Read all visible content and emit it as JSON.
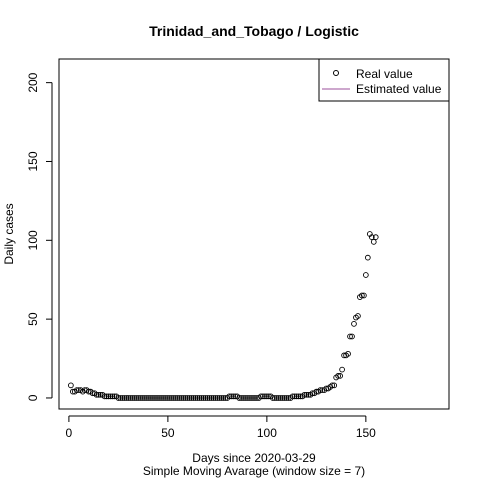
{
  "chart_data": {
    "type": "scatter",
    "title": "Trinidad_and_Tobago / Logistic",
    "xlabel": "Days since 2020-03-29",
    "subtitle": "Simple Moving Avarage (window size = 7)",
    "ylabel": "Daily cases",
    "xlim": [
      -5,
      192
    ],
    "ylim": [
      -7,
      215
    ],
    "x_ticks": [
      0,
      50,
      100,
      150
    ],
    "y_ticks": [
      0,
      50,
      100,
      150,
      200
    ],
    "legend": {
      "placement": "top-right",
      "entries": [
        {
          "label": "Real value",
          "symbol": "open-circle",
          "color": "#000000"
        },
        {
          "label": "Estimated value",
          "symbol": "line",
          "color": "#9b4f9b"
        }
      ]
    },
    "series": [
      {
        "name": "Real value",
        "color": "#000000",
        "points": [
          [
            1,
            8
          ],
          [
            2,
            4
          ],
          [
            3,
            4
          ],
          [
            4,
            5
          ],
          [
            5,
            5
          ],
          [
            6,
            5
          ],
          [
            7,
            4
          ],
          [
            8,
            5
          ],
          [
            9,
            5
          ],
          [
            10,
            4
          ],
          [
            11,
            4
          ],
          [
            12,
            3
          ],
          [
            13,
            3
          ],
          [
            14,
            2
          ],
          [
            15,
            2
          ],
          [
            16,
            2
          ],
          [
            17,
            2
          ],
          [
            18,
            1
          ],
          [
            19,
            1
          ],
          [
            20,
            1
          ],
          [
            21,
            1
          ],
          [
            22,
            1
          ],
          [
            23,
            1
          ],
          [
            24,
            1
          ],
          [
            25,
            0
          ],
          [
            26,
            0
          ],
          [
            27,
            0
          ],
          [
            28,
            0
          ],
          [
            29,
            0
          ],
          [
            30,
            0
          ],
          [
            31,
            0
          ],
          [
            32,
            0
          ],
          [
            33,
            0
          ],
          [
            34,
            0
          ],
          [
            35,
            0
          ],
          [
            36,
            0
          ],
          [
            37,
            0
          ],
          [
            38,
            0
          ],
          [
            39,
            0
          ],
          [
            40,
            0
          ],
          [
            41,
            0
          ],
          [
            42,
            0
          ],
          [
            43,
            0
          ],
          [
            44,
            0
          ],
          [
            45,
            0
          ],
          [
            46,
            0
          ],
          [
            47,
            0
          ],
          [
            48,
            0
          ],
          [
            49,
            0
          ],
          [
            50,
            0
          ],
          [
            51,
            0
          ],
          [
            52,
            0
          ],
          [
            53,
            0
          ],
          [
            54,
            0
          ],
          [
            55,
            0
          ],
          [
            56,
            0
          ],
          [
            57,
            0
          ],
          [
            58,
            0
          ],
          [
            59,
            0
          ],
          [
            60,
            0
          ],
          [
            61,
            0
          ],
          [
            62,
            0
          ],
          [
            63,
            0
          ],
          [
            64,
            0
          ],
          [
            65,
            0
          ],
          [
            66,
            0
          ],
          [
            67,
            0
          ],
          [
            68,
            0
          ],
          [
            69,
            0
          ],
          [
            70,
            0
          ],
          [
            71,
            0
          ],
          [
            72,
            0
          ],
          [
            73,
            0
          ],
          [
            74,
            0
          ],
          [
            75,
            0
          ],
          [
            76,
            0
          ],
          [
            77,
            0
          ],
          [
            78,
            0
          ],
          [
            79,
            0
          ],
          [
            80,
            0
          ],
          [
            81,
            1
          ],
          [
            82,
            1
          ],
          [
            83,
            1
          ],
          [
            84,
            1
          ],
          [
            85,
            1
          ],
          [
            86,
            0
          ],
          [
            87,
            0
          ],
          [
            88,
            0
          ],
          [
            89,
            0
          ],
          [
            90,
            0
          ],
          [
            91,
            0
          ],
          [
            92,
            0
          ],
          [
            93,
            0
          ],
          [
            94,
            0
          ],
          [
            95,
            0
          ],
          [
            96,
            0
          ],
          [
            97,
            1
          ],
          [
            98,
            1
          ],
          [
            99,
            1
          ],
          [
            100,
            1
          ],
          [
            101,
            1
          ],
          [
            102,
            1
          ],
          [
            103,
            0
          ],
          [
            104,
            0
          ],
          [
            105,
            0
          ],
          [
            106,
            0
          ],
          [
            107,
            0
          ],
          [
            108,
            0
          ],
          [
            109,
            0
          ],
          [
            110,
            0
          ],
          [
            111,
            0
          ],
          [
            112,
            0
          ],
          [
            113,
            1
          ],
          [
            114,
            1
          ],
          [
            115,
            1
          ],
          [
            116,
            1
          ],
          [
            117,
            1
          ],
          [
            118,
            1
          ],
          [
            119,
            2
          ],
          [
            120,
            2
          ],
          [
            121,
            2
          ],
          [
            122,
            2
          ],
          [
            123,
            3
          ],
          [
            124,
            3
          ],
          [
            125,
            4
          ],
          [
            126,
            4
          ],
          [
            127,
            5
          ],
          [
            128,
            5
          ],
          [
            129,
            5
          ],
          [
            130,
            6
          ],
          [
            131,
            6
          ],
          [
            132,
            7
          ],
          [
            133,
            8
          ],
          [
            134,
            8
          ],
          [
            135,
            13
          ],
          [
            136,
            14
          ],
          [
            137,
            14
          ],
          [
            138,
            18
          ],
          [
            139,
            27
          ],
          [
            140,
            27
          ],
          [
            141,
            28
          ],
          [
            142,
            39
          ],
          [
            143,
            39
          ],
          [
            144,
            47
          ],
          [
            145,
            51
          ],
          [
            146,
            52
          ],
          [
            147,
            64
          ],
          [
            148,
            65
          ],
          [
            149,
            65
          ],
          [
            150,
            78
          ],
          [
            151,
            89
          ],
          [
            152,
            104
          ],
          [
            153,
            102
          ],
          [
            154,
            99
          ],
          [
            155,
            102
          ]
        ]
      }
    ]
  }
}
